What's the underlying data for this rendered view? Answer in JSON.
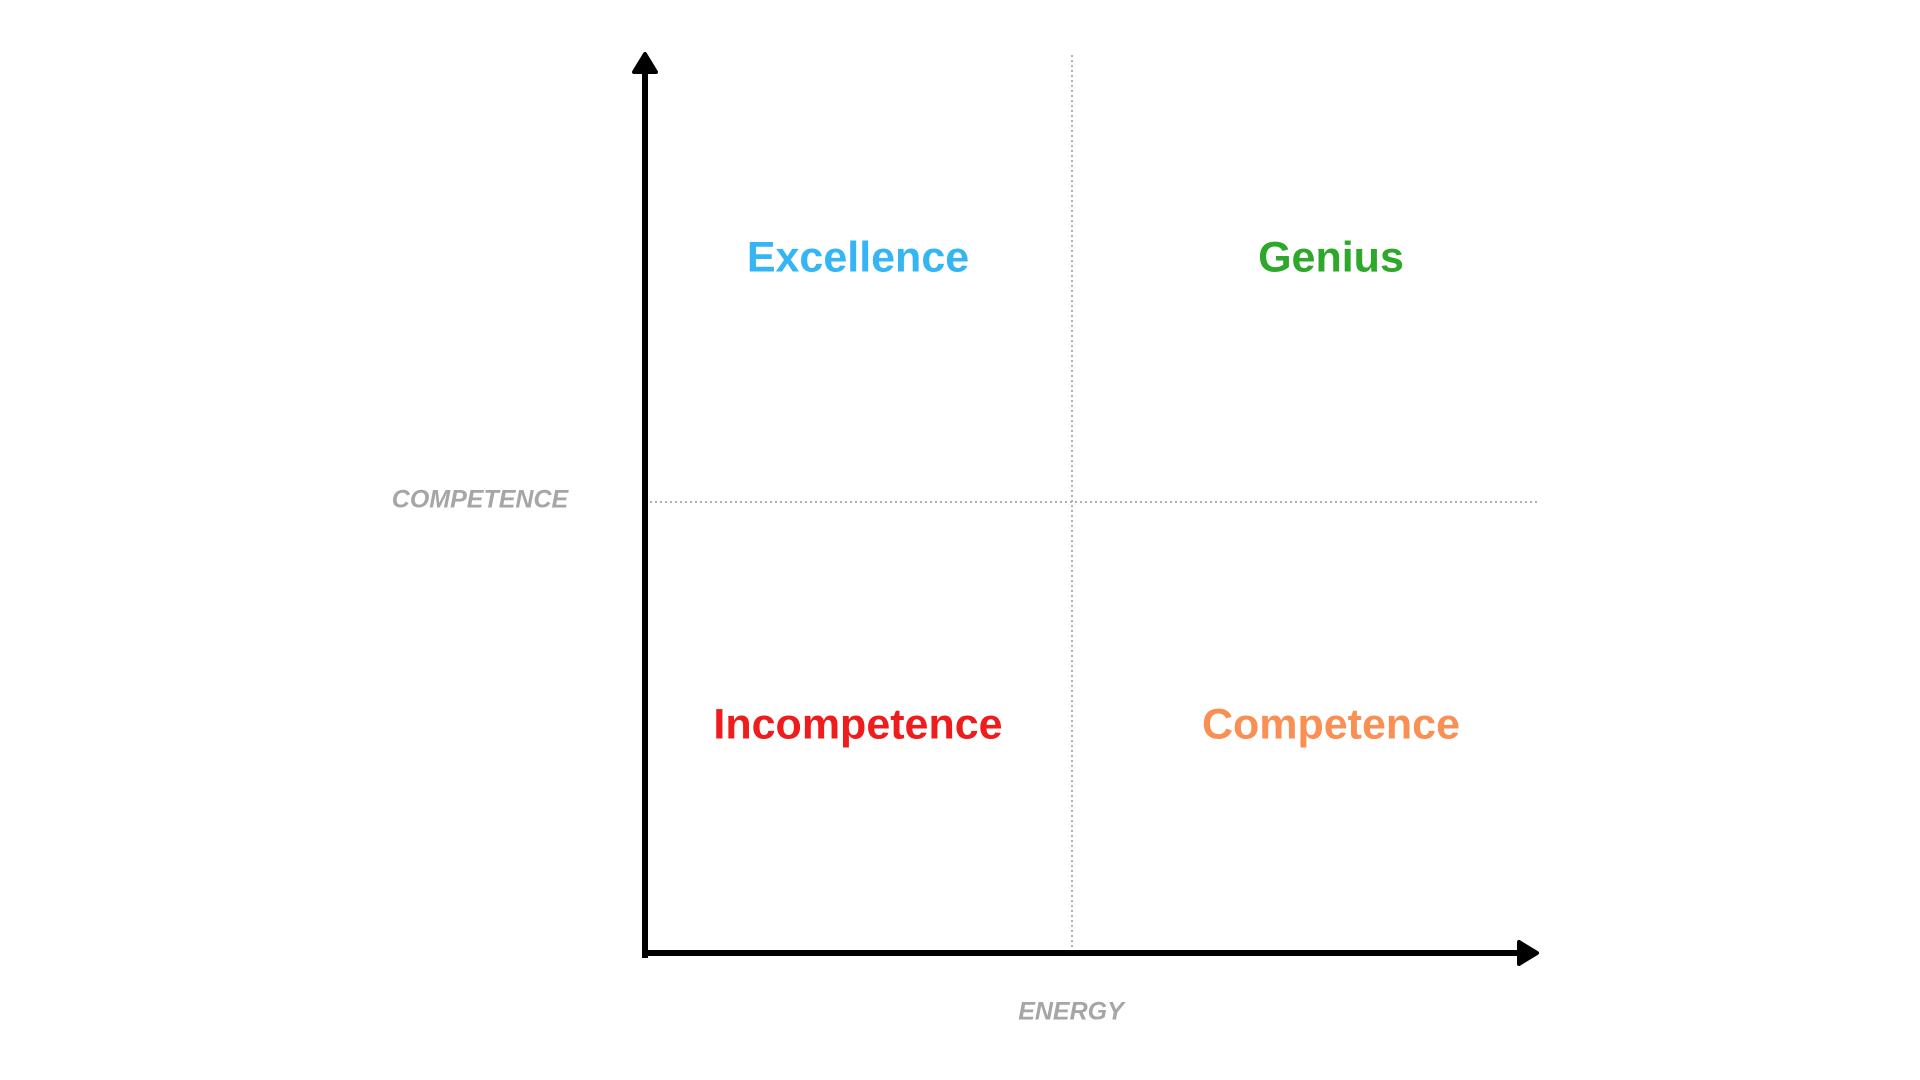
{
  "axes": {
    "x_label": "ENERGY",
    "y_label": "COMPETENCE"
  },
  "quadrants": [
    {
      "position": "top-left",
      "label": "Excellence",
      "color": "#36b5f4"
    },
    {
      "position": "top-right",
      "label": "Genius",
      "color": "#2ea82a"
    },
    {
      "position": "bottom-left",
      "label": "Incompetence",
      "color": "#ee1c1c"
    },
    {
      "position": "bottom-right",
      "label": "Competence",
      "color": "#f98f52"
    }
  ],
  "colors": {
    "axis": "#000000",
    "divider": "#b0b0b0",
    "axis_label": "#a6a6a6"
  }
}
